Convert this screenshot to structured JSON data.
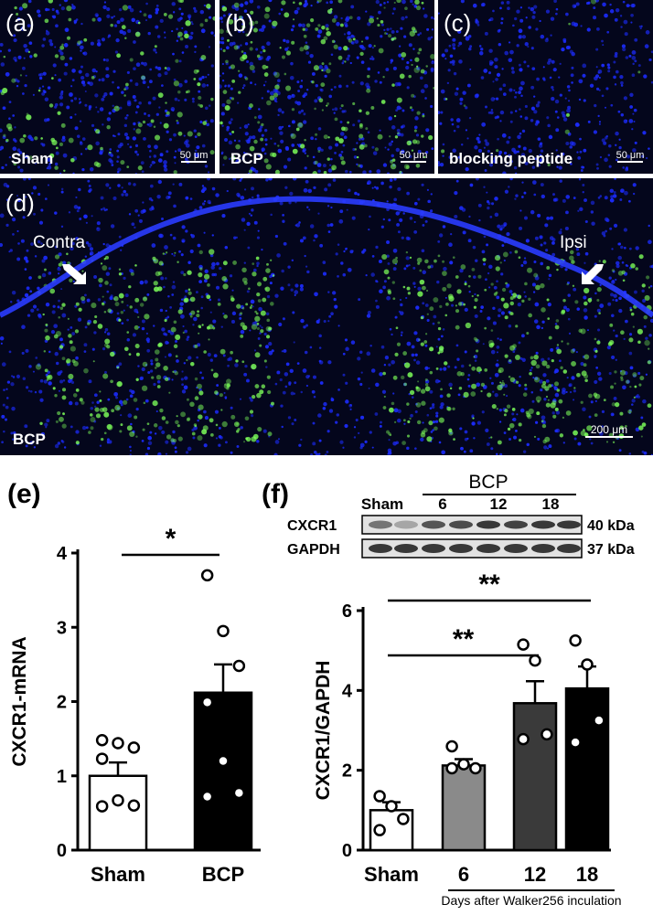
{
  "panels": {
    "a": {
      "label": "(a)",
      "tag": "Sham",
      "scale": "50 μm"
    },
    "b": {
      "label": "(b)",
      "tag": "BCP",
      "scale": "50 μm"
    },
    "c": {
      "label": "(c)",
      "tag": "blocking peptide",
      "scale": "50 μm"
    },
    "d": {
      "label": "(d)",
      "tag": "BCP",
      "scale": "200 μm",
      "left_side": "Contra",
      "right_side": "Ipsi"
    }
  },
  "blot": {
    "group_label": "BCP",
    "lanes": [
      "Sham",
      "6",
      "12",
      "18"
    ],
    "rows": [
      {
        "name": "CXCR1",
        "size": "40 kDa"
      },
      {
        "name": "GAPDH",
        "size": "37 kDa"
      }
    ]
  },
  "chart_data": [
    {
      "panel": "(e)",
      "type": "bar",
      "categories": [
        "Sham",
        "BCP"
      ],
      "values": [
        1.0,
        2.12
      ],
      "errors": [
        0.18,
        0.38
      ],
      "points": [
        [
          1.48,
          1.44,
          1.38,
          1.23,
          0.67,
          0.6,
          0.59
        ],
        [
          3.7,
          2.95,
          2.48,
          1.99,
          1.2,
          0.77,
          0.72
        ]
      ],
      "ylabel": "CXCR1-mRNA",
      "ylim": [
        0,
        4
      ],
      "yticks": [
        "0",
        "1",
        "2",
        "3",
        "4"
      ],
      "significance": [
        {
          "from": 0,
          "to": 1,
          "label": "*"
        }
      ],
      "bar_colors": [
        "#ffffff",
        "#000000"
      ]
    },
    {
      "panel": "(f)",
      "type": "bar",
      "categories": [
        "Sham",
        "6",
        "12",
        "18"
      ],
      "values": [
        1.0,
        2.12,
        3.68,
        4.05
      ],
      "errors": [
        0.2,
        0.16,
        0.55,
        0.55
      ],
      "points": [
        [
          1.35,
          1.1,
          0.78,
          0.5
        ],
        [
          2.6,
          2.15,
          2.05,
          2.05
        ],
        [
          5.15,
          4.75,
          2.9,
          2.78
        ],
        [
          5.25,
          4.65,
          3.25,
          2.7
        ]
      ],
      "ylabel": "CXCR1/GAPDH",
      "xlabel": "Days after Walker256 inculation",
      "ylim": [
        0,
        6
      ],
      "yticks": [
        "0",
        "2",
        "4",
        "6"
      ],
      "significance": [
        {
          "from": 0,
          "to": 2,
          "label": "**"
        },
        {
          "from": 0,
          "to": 3,
          "label": "**"
        }
      ],
      "bar_colors": [
        "#ffffff",
        "#8a8a8a",
        "#3a3a3a",
        "#000000"
      ]
    }
  ],
  "labels": {
    "e": "(e)",
    "f": "(f)"
  }
}
